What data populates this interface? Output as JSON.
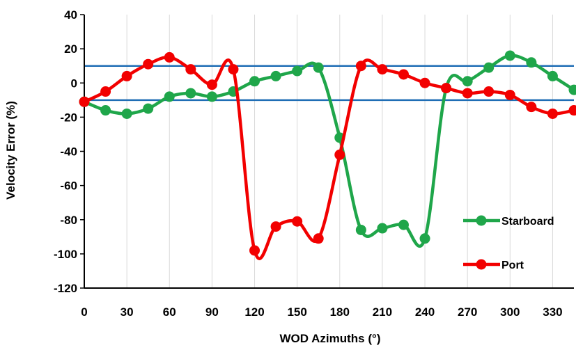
{
  "chart_data": {
    "type": "line",
    "xlabel": "WOD Azimuths (°)",
    "ylabel": "Velocity Error (%)",
    "xlim": [
      0,
      345
    ],
    "ylim": [
      -120,
      40
    ],
    "xticks": [
      0,
      30,
      60,
      90,
      120,
      150,
      180,
      210,
      240,
      270,
      300,
      330
    ],
    "yticks": [
      40,
      20,
      0,
      -20,
      -40,
      -60,
      -80,
      -100,
      -120
    ],
    "grid": "vertical",
    "legend": "right",
    "x": [
      0,
      15,
      30,
      45,
      60,
      75,
      90,
      105,
      120,
      135,
      150,
      165,
      180,
      195,
      210,
      225,
      240,
      255,
      270,
      285,
      300,
      315,
      330,
      345
    ],
    "series": [
      {
        "name": "Starboard",
        "color": "#1fa64a",
        "values": [
          -11,
          -16,
          -18,
          -15,
          -8,
          -6,
          -8,
          -5,
          1,
          4,
          7,
          9,
          -32,
          -86,
          -85,
          -83,
          -91,
          -3,
          1,
          9,
          16,
          12,
          4,
          -4
        ]
      },
      {
        "name": "Port",
        "color": "#f20000",
        "values": [
          -11,
          -5,
          4,
          11,
          15,
          8,
          -1,
          8,
          -98,
          -84,
          -81,
          -91,
          -42,
          10,
          8,
          5,
          0,
          -3,
          -6,
          -5,
          -7,
          -14,
          -18,
          -16
        ]
      }
    ],
    "reference_lines": {
      "color": "#1f6eb5",
      "values": [
        10,
        -10
      ]
    }
  }
}
